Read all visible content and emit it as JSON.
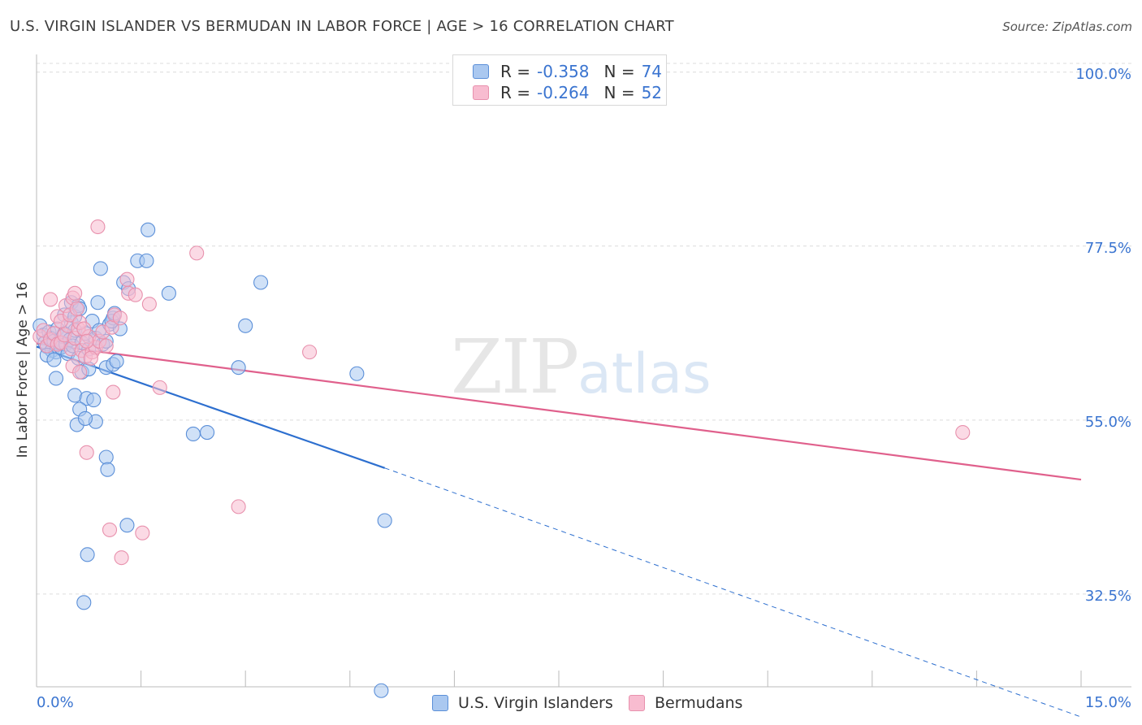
{
  "header": {
    "title": "U.S. VIRGIN ISLANDER VS BERMUDAN IN LABOR FORCE | AGE > 16 CORRELATION CHART",
    "source": "Source: ZipAtlas.com"
  },
  "watermark": {
    "zip": "ZIP",
    "atlas": "atlas"
  },
  "colors": {
    "blue_fill": "#aac8f0",
    "blue_stroke": "#5b8fd8",
    "blue_line": "#2d6fcf",
    "pink_fill": "#f8bcd0",
    "pink_stroke": "#e891ad",
    "pink_line": "#e0608c",
    "axis_text": "#3a74d0",
    "grid": "#dcdcdc"
  },
  "legend_top": [
    {
      "r_label": "R =",
      "r_value": "-0.358",
      "n_label": "N =",
      "n_value": "74"
    },
    {
      "r_label": "R =",
      "r_value": "-0.264",
      "n_label": "N =",
      "n_value": "52"
    }
  ],
  "legend_bottom": {
    "series1": "U.S. Virgin Islanders",
    "series2": "Bermudans"
  },
  "chart_data": {
    "type": "scatter",
    "title": "U.S. VIRGIN ISLANDER VS BERMUDAN IN LABOR FORCE | AGE > 16 CORRELATION CHART",
    "xlabel": "",
    "ylabel": "In Labor Force | Age > 16",
    "xlim": [
      0,
      15
    ],
    "ylim": [
      20.5,
      102.5
    ],
    "x_tick_labels": [
      "0.0%",
      "15.0%"
    ],
    "y_ticks": [
      100.0,
      77.5,
      55.0,
      32.5
    ],
    "y_tick_labels": [
      "100.0%",
      "77.5%",
      "55.0%",
      "32.5%"
    ],
    "grid": true,
    "series": [
      {
        "name": "U.S. Virgin Islanders",
        "points": [
          [
            0.05,
            67.2
          ],
          [
            0.1,
            66.0
          ],
          [
            0.12,
            65.0
          ],
          [
            0.15,
            64.5
          ],
          [
            0.18,
            66.4
          ],
          [
            0.2,
            65.6
          ],
          [
            0.22,
            64.0
          ],
          [
            0.25,
            65.2
          ],
          [
            0.28,
            63.8
          ],
          [
            0.3,
            66.8
          ],
          [
            0.32,
            65.0
          ],
          [
            0.35,
            64.4
          ],
          [
            0.38,
            65.8
          ],
          [
            0.4,
            66.2
          ],
          [
            0.42,
            64.8
          ],
          [
            0.45,
            63.6
          ],
          [
            0.48,
            65.4
          ],
          [
            0.5,
            67.6
          ],
          [
            0.52,
            64.6
          ],
          [
            0.55,
            66.6
          ],
          [
            0.6,
            63.0
          ],
          [
            0.65,
            65.0
          ],
          [
            0.7,
            66.2
          ],
          [
            0.75,
            64.2
          ],
          [
            0.8,
            67.8
          ],
          [
            0.85,
            65.6
          ],
          [
            0.9,
            66.6
          ],
          [
            0.95,
            64.8
          ],
          [
            1.0,
            65.2
          ],
          [
            1.05,
            67.4
          ],
          [
            1.1,
            68.2
          ],
          [
            1.2,
            66.8
          ],
          [
            0.15,
            63.4
          ],
          [
            0.25,
            62.8
          ],
          [
            0.4,
            68.6
          ],
          [
            0.5,
            70.2
          ],
          [
            0.55,
            68.4
          ],
          [
            0.6,
            69.8
          ],
          [
            0.65,
            61.2
          ],
          [
            0.75,
            61.6
          ],
          [
            0.62,
            69.4
          ],
          [
            0.88,
            70.2
          ],
          [
            0.92,
            74.6
          ],
          [
            1.08,
            67.8
          ],
          [
            1.12,
            68.8
          ],
          [
            1.25,
            72.8
          ],
          [
            1.32,
            72.0
          ],
          [
            1.45,
            75.6
          ],
          [
            1.6,
            79.6
          ],
          [
            1.58,
            75.6
          ],
          [
            1.9,
            71.4
          ],
          [
            0.28,
            60.4
          ],
          [
            0.55,
            58.2
          ],
          [
            0.72,
            57.8
          ],
          [
            0.62,
            56.4
          ],
          [
            0.58,
            54.4
          ],
          [
            0.85,
            54.8
          ],
          [
            0.82,
            57.6
          ],
          [
            0.7,
            55.2
          ],
          [
            1.0,
            61.8
          ],
          [
            1.1,
            62.2
          ],
          [
            1.15,
            62.6
          ],
          [
            1.0,
            50.2
          ],
          [
            1.02,
            48.6
          ],
          [
            1.3,
            41.4
          ],
          [
            0.73,
            37.6
          ],
          [
            0.68,
            31.4
          ],
          [
            2.25,
            53.2
          ],
          [
            2.45,
            53.4
          ],
          [
            2.9,
            61.8
          ],
          [
            3.0,
            67.2
          ],
          [
            3.22,
            72.8
          ],
          [
            4.6,
            61.0
          ],
          [
            5.0,
            42.0
          ],
          [
            4.95,
            20.0
          ]
        ]
      },
      {
        "name": "Bermudans",
        "points": [
          [
            0.05,
            65.8
          ],
          [
            0.1,
            66.6
          ],
          [
            0.15,
            64.6
          ],
          [
            0.2,
            65.4
          ],
          [
            0.25,
            66.2
          ],
          [
            0.3,
            64.8
          ],
          [
            0.35,
            65.0
          ],
          [
            0.4,
            66.0
          ],
          [
            0.45,
            67.2
          ],
          [
            0.5,
            64.2
          ],
          [
            0.55,
            65.6
          ],
          [
            0.6,
            66.8
          ],
          [
            0.65,
            64.0
          ],
          [
            0.7,
            63.2
          ],
          [
            0.75,
            65.8
          ],
          [
            0.8,
            63.8
          ],
          [
            0.85,
            64.4
          ],
          [
            0.9,
            65.2
          ],
          [
            0.95,
            66.4
          ],
          [
            1.0,
            64.6
          ],
          [
            0.2,
            70.6
          ],
          [
            0.3,
            68.4
          ],
          [
            0.35,
            67.8
          ],
          [
            0.42,
            69.8
          ],
          [
            0.48,
            68.6
          ],
          [
            0.52,
            70.8
          ],
          [
            0.55,
            71.4
          ],
          [
            0.58,
            69.4
          ],
          [
            0.62,
            67.6
          ],
          [
            0.68,
            66.8
          ],
          [
            0.72,
            65.2
          ],
          [
            0.78,
            63.0
          ],
          [
            1.08,
            67.0
          ],
          [
            1.12,
            68.6
          ],
          [
            1.2,
            68.2
          ],
          [
            1.3,
            73.2
          ],
          [
            1.32,
            71.4
          ],
          [
            1.42,
            71.2
          ],
          [
            1.62,
            70.0
          ],
          [
            0.52,
            62.0
          ],
          [
            0.62,
            61.2
          ],
          [
            1.1,
            58.6
          ],
          [
            0.72,
            50.8
          ],
          [
            1.05,
            40.8
          ],
          [
            1.22,
            37.2
          ],
          [
            1.52,
            40.4
          ],
          [
            0.88,
            80.0
          ],
          [
            2.3,
            76.6
          ],
          [
            1.77,
            59.2
          ],
          [
            2.9,
            43.8
          ],
          [
            3.92,
            63.8
          ],
          [
            13.3,
            53.4
          ]
        ]
      }
    ],
    "trendlines": [
      {
        "series": "U.S. Virgin Islanders",
        "solid_from": [
          0,
          64.5
        ],
        "solid_to": [
          5.0,
          48.8
        ],
        "dashed_to": [
          15,
          16.6
        ]
      },
      {
        "series": "Bermudans",
        "from": [
          0,
          64.9
        ],
        "to": [
          15,
          47.3
        ]
      }
    ]
  }
}
